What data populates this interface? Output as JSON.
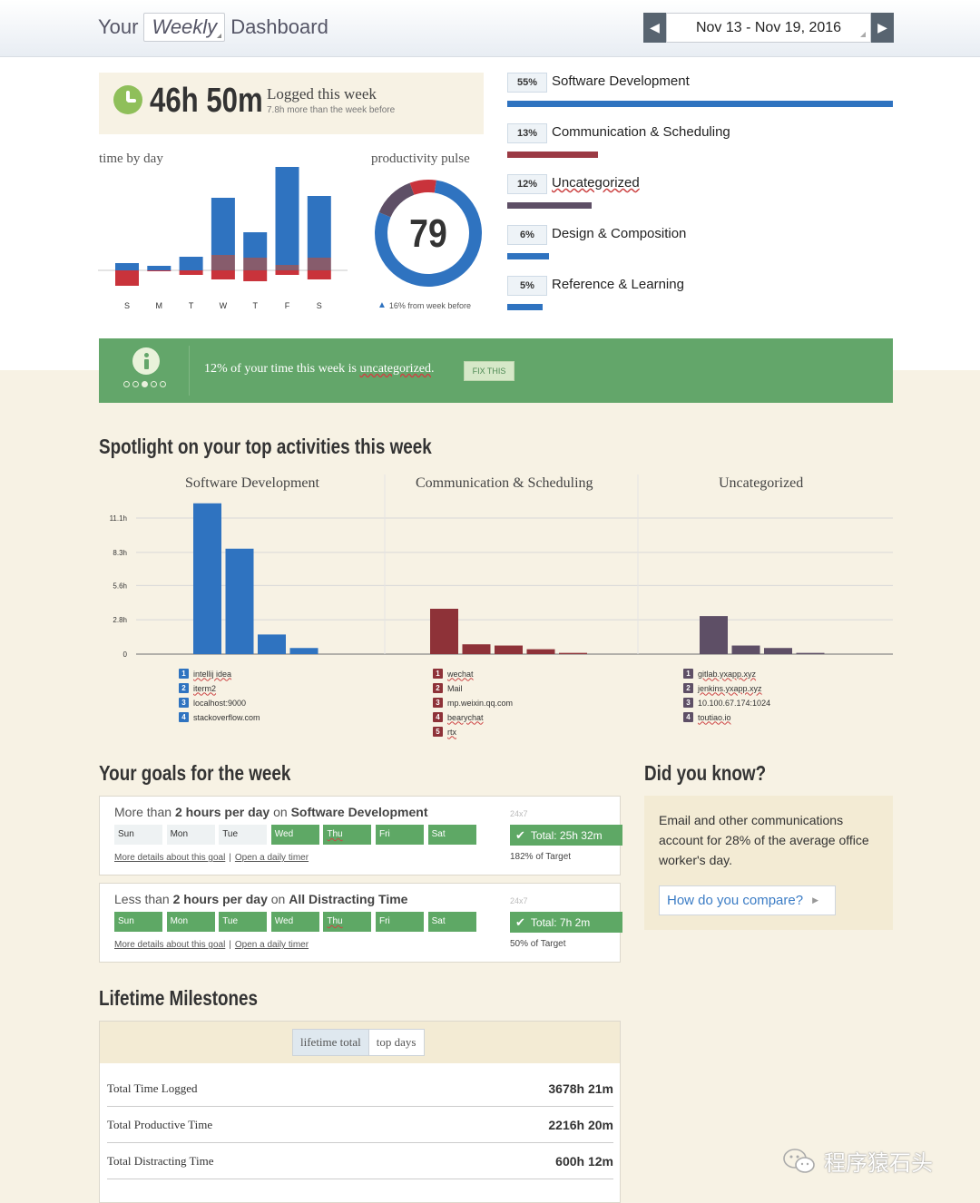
{
  "header": {
    "title_prefix": "Your",
    "period": "Weekly",
    "title_suffix": "Dashboard",
    "date_range": "Nov 13 - Nov 19, 2016"
  },
  "logged": {
    "total": "46h 50m",
    "label": "Logged this week",
    "delta": "7.8h more than the week before"
  },
  "time_by_day": {
    "title": "time by day",
    "days": [
      "S",
      "M",
      "T",
      "W",
      "T",
      "F",
      "S"
    ]
  },
  "pulse": {
    "title": "productivity pulse",
    "score": "79",
    "delta": "16% from week before"
  },
  "categories": [
    {
      "pct": "55%",
      "label": "Software Development",
      "color": "#2f73c0",
      "fraction": 0.55
    },
    {
      "pct": "13%",
      "label": "Communication & Scheduling",
      "color": "#9b3a44",
      "fraction": 0.13
    },
    {
      "pct": "12%",
      "label": "Uncategorized",
      "color": "#5e4f66",
      "fraction": 0.12
    },
    {
      "pct": "6%",
      "label": "Design & Composition",
      "color": "#2f73c0",
      "fraction": 0.06
    },
    {
      "pct": "5%",
      "label": "Reference & Learning",
      "color": "#2f73c0",
      "fraction": 0.05
    }
  ],
  "info": {
    "text_before": "12% of your time this week is ",
    "text_link": "uncategorized",
    "text_after": ".",
    "button": "FIX THIS"
  },
  "spotlight": {
    "title": "Spotlight on your top activities this week",
    "groups": [
      {
        "title": "Software Development",
        "items": [
          "intellij idea",
          "iterm2",
          "localhost:9000",
          "stackoverflow.com"
        ]
      },
      {
        "title": "Communication & Scheduling",
        "items": [
          "wechat",
          "Mail",
          "mp.weixin.qq.com",
          "bearychat",
          "rtx"
        ]
      },
      {
        "title": "Uncategorized",
        "items": [
          "gitlab.yxapp.xyz",
          "jenkins.yxapp.xyz",
          "10.100.67.174:1024",
          "toutiao.io"
        ]
      }
    ]
  },
  "goals": {
    "title": "Your goals for the week",
    "links": [
      "More details about this goal",
      "Open a daily timer"
    ],
    "day_names": [
      "Sun",
      "Mon",
      "Tue",
      "Wed",
      "Thu",
      "Fri",
      "Sat"
    ],
    "items": [
      {
        "pre": "More than ",
        "amount": "2 hours per day",
        "mid": " on ",
        "target": "Software Development",
        "sched": "24x7",
        "total": "Total: 25h 32m",
        "pct": "182% of Target",
        "days_met": [
          false,
          false,
          false,
          true,
          true,
          true,
          true
        ]
      },
      {
        "pre": "Less than ",
        "amount": "2 hours per day",
        "mid": " on ",
        "target": "All Distracting Time",
        "sched": "24x7",
        "total": "Total: 7h 2m",
        "pct": "50% of Target",
        "days_met": [
          true,
          true,
          true,
          true,
          true,
          true,
          true
        ]
      }
    ]
  },
  "dyk": {
    "title": "Did you know?",
    "text": "Email and other communications account for 28% of the average office worker's day.",
    "button": "How do you compare?"
  },
  "milestones": {
    "title": "Lifetime Milestones",
    "tabs": [
      "lifetime total",
      "top days"
    ],
    "rows": [
      {
        "label": "Total Time Logged",
        "value": "3678h 21m"
      },
      {
        "label": "Total Productive Time",
        "value": "2216h 20m"
      },
      {
        "label": "Total Distracting Time",
        "value": "600h 12m"
      }
    ]
  },
  "watermark": "程序猿石头",
  "chart_data": [
    {
      "type": "bar",
      "title": "time by day",
      "categories": [
        "S",
        "M",
        "T",
        "W",
        "T",
        "F",
        "S"
      ],
      "series": [
        {
          "values": [
            0.8,
            0.5,
            1.5,
            6.3,
            2.8,
            10.8,
            6.8
          ]
        },
        {
          "values": [
            0,
            0,
            0,
            1.7,
            1.4,
            0.6,
            1.4
          ]
        },
        {
          "values": [
            1.7,
            0.1,
            0.5,
            1.0,
            1.2,
            0.5,
            1.0
          ]
        }
      ],
      "ylim": [
        -2,
        11
      ]
    },
    {
      "type": "pie",
      "title": "productivity pulse",
      "slices": [
        {
          "label": "productive",
          "value": 79,
          "color": "#2f73c0"
        },
        {
          "label": "neutral",
          "value": 13,
          "color": "#5e4f66"
        },
        {
          "label": "distracting",
          "value": 8,
          "color": "#c9333b"
        }
      ]
    },
    {
      "type": "bar",
      "title": "Spotlight on your top activities this week",
      "yticks": [
        "0",
        "2.8h",
        "5.6h",
        "8.3h",
        "11.1h"
      ],
      "yvalues": [
        0,
        2.8,
        5.6,
        8.3,
        11.1
      ],
      "ylim": [
        0,
        12
      ],
      "series": [
        {
          "name": "Software Development",
          "color": "#2f73c0",
          "categories": [
            "intellij idea",
            "iterm2",
            "localhost:9000",
            "stackoverflow.com"
          ],
          "values": [
            12.3,
            8.6,
            1.6,
            0.5
          ]
        },
        {
          "name": "Communication & Scheduling",
          "color": "#8e3238",
          "categories": [
            "wechat",
            "Mail",
            "mp.weixin.qq.com",
            "bearychat",
            "rtx"
          ],
          "values": [
            3.7,
            0.8,
            0.7,
            0.4,
            0.1
          ]
        },
        {
          "name": "Uncategorized",
          "color": "#5e4f66",
          "categories": [
            "gitlab.yxapp.xyz",
            "jenkins.yxapp.xyz",
            "10.100.67.174:1024",
            "toutiao.io"
          ],
          "values": [
            3.1,
            0.7,
            0.5,
            0.1
          ]
        }
      ]
    }
  ]
}
